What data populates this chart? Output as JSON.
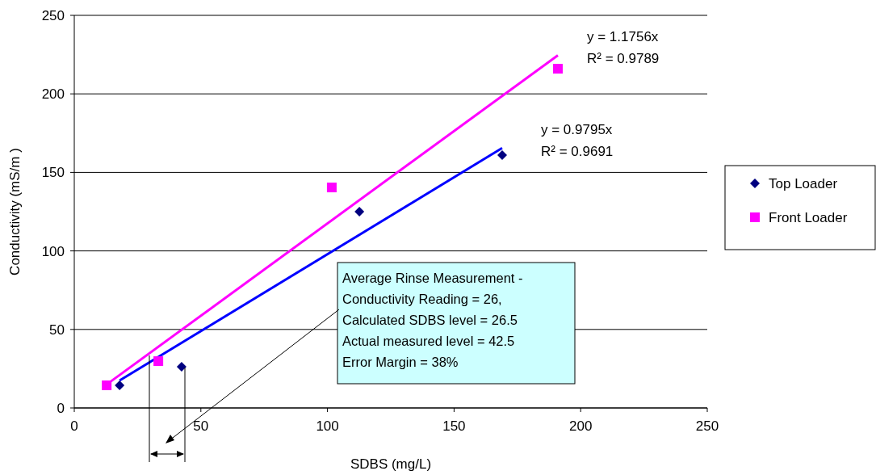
{
  "chart_data": {
    "type": "scatter",
    "xlabel": "SDBS (mg/L)",
    "ylabel": "Conductivity (mS/m )",
    "xlim": [
      0,
      250
    ],
    "xticks": [
      0,
      50,
      100,
      150,
      200,
      250
    ],
    "ylim": [
      0,
      250
    ],
    "yticks": [
      0,
      50,
      100,
      150,
      200,
      250
    ],
    "grid": "y",
    "legend": "right",
    "series": [
      {
        "name": "Top Loader",
        "marker": "diamond",
        "color": "#000080",
        "x": [
          17.9,
          42.4,
          112.6,
          169
        ],
        "values": [
          14.4,
          26.2,
          125,
          161
        ]
      },
      {
        "name": "Front Loader",
        "marker": "square",
        "color": "#ff00ff",
        "x": [
          12.8,
          33.2,
          101.7,
          191
        ],
        "values": [
          14.4,
          29.8,
          140.4,
          216
        ]
      },
      {
        "type": "line",
        "marker": "none",
        "color": "#ff00ff",
        "x": [
          12.8,
          191
        ],
        "values": [
          15.0,
          224.5
        ]
      },
      {
        "type": "line",
        "marker": "none",
        "color": "#0000ff",
        "x": [
          17.9,
          169
        ],
        "values": [
          17.5,
          165.5
        ]
      }
    ],
    "annotations": [
      "y = 1.1756x",
      "R² = 0.9789",
      "y = 0.9795x",
      "R² = 0.9691",
      "Average Rinse Measurement -\nConductivity Reading = 26,\nCalculated SDBS level = 26.5\nActual measured level = 42.5\nError Margin = 38%"
    ]
  }
}
